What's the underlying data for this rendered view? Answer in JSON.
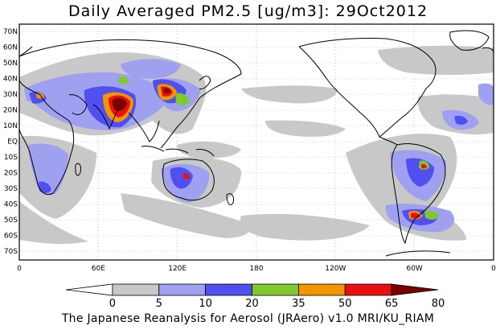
{
  "title": "Daily Averaged PM2.5 [ug/m3]: 29Oct2012",
  "footer": "The Japanese Reanalysis for Aerosol (JRAero) v1.0 MRI/KU_RIAM",
  "map": {
    "lat_ticks": [
      "70N",
      "60N",
      "50N",
      "40N",
      "30N",
      "20N",
      "10N",
      "EQ",
      "10S",
      "20S",
      "30S",
      "40S",
      "50S",
      "60S",
      "70S"
    ],
    "lon_ticks": [
      "0",
      "60E",
      "120E",
      "180",
      "120W",
      "60W",
      "0"
    ]
  },
  "colorbar": {
    "labels": [
      "0",
      "5",
      "10",
      "20",
      "35",
      "50",
      "65",
      "80"
    ],
    "colors": [
      "#ffffff",
      "#c8c8c8",
      "#a0a0f0",
      "#5050f0",
      "#80c830",
      "#f09600",
      "#e81010",
      "#780000"
    ]
  }
}
